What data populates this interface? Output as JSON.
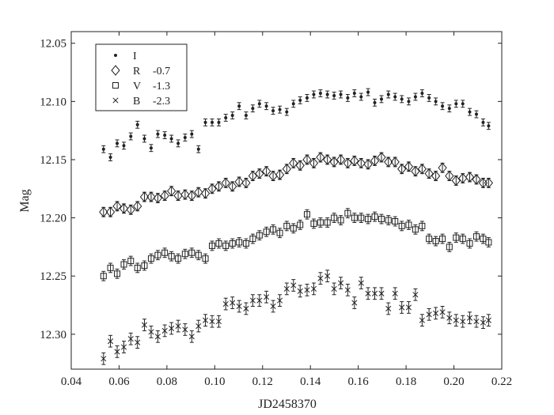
{
  "chart_data": {
    "type": "scatter",
    "xlabel": "JD2458370",
    "ylabel": "Mag",
    "xlim": [
      0.04,
      0.22
    ],
    "ylim": [
      12.33,
      12.04
    ],
    "y_inverted": true,
    "grid": false,
    "legend_position": "top-left",
    "xticks": [
      "0.04",
      "0.06",
      "0.08",
      "0.10",
      "0.12",
      "0.14",
      "0.16",
      "0.18",
      "0.20",
      "0.22"
    ],
    "yticks": [
      "12.05",
      "12.10",
      "12.15",
      "12.20",
      "12.25",
      "12.30"
    ],
    "series": [
      {
        "name": "I",
        "offset_label": "",
        "marker": "dot",
        "error": 0.003,
        "x": [
          0.0535,
          0.0564,
          0.0592,
          0.062,
          0.0649,
          0.0677,
          0.0706,
          0.0734,
          0.0762,
          0.0791,
          0.0819,
          0.0847,
          0.0876,
          0.0904,
          0.0932,
          0.0961,
          0.0989,
          0.1017,
          0.1046,
          0.1074,
          0.1102,
          0.1131,
          0.1159,
          0.1187,
          0.1216,
          0.1244,
          0.1272,
          0.1301,
          0.1329,
          0.1357,
          0.1386,
          0.1414,
          0.1442,
          0.1471,
          0.1499,
          0.1527,
          0.1556,
          0.1584,
          0.1612,
          0.1641,
          0.1669,
          0.1697,
          0.1726,
          0.1754,
          0.1782,
          0.1811,
          0.1839,
          0.1867,
          0.1896,
          0.1924,
          0.1952,
          0.1981,
          0.2009,
          0.2037,
          0.2066,
          0.2094,
          0.2122,
          0.2145
        ],
        "y": [
          12.141,
          12.148,
          12.136,
          12.138,
          12.13,
          12.12,
          12.132,
          12.14,
          12.128,
          12.129,
          12.132,
          12.136,
          12.131,
          12.128,
          12.141,
          12.118,
          12.118,
          12.118,
          12.114,
          12.112,
          12.104,
          12.112,
          12.106,
          12.102,
          12.104,
          12.108,
          12.107,
          12.109,
          12.102,
          12.099,
          12.097,
          12.094,
          12.093,
          12.094,
          12.095,
          12.094,
          12.097,
          12.093,
          12.096,
          12.092,
          12.101,
          12.098,
          12.094,
          12.096,
          12.098,
          12.1,
          12.096,
          12.093,
          12.097,
          12.1,
          12.104,
          12.106,
          12.102,
          12.102,
          12.109,
          12.111,
          12.118,
          12.121
        ]
      },
      {
        "name": "R",
        "offset_label": "-0.7",
        "marker": "diamond",
        "error": 0.004,
        "x": [
          0.0535,
          0.0564,
          0.0592,
          0.062,
          0.0649,
          0.0677,
          0.0706,
          0.0734,
          0.0762,
          0.0791,
          0.0819,
          0.0847,
          0.0876,
          0.0904,
          0.0932,
          0.0961,
          0.0989,
          0.1017,
          0.1046,
          0.1074,
          0.1102,
          0.1131,
          0.1159,
          0.1187,
          0.1216,
          0.1244,
          0.1272,
          0.1301,
          0.1329,
          0.1357,
          0.1386,
          0.1414,
          0.1442,
          0.1471,
          0.1499,
          0.1527,
          0.1556,
          0.1584,
          0.1612,
          0.1641,
          0.1669,
          0.1697,
          0.1726,
          0.1754,
          0.1782,
          0.1811,
          0.1839,
          0.1867,
          0.1896,
          0.1924,
          0.1952,
          0.1981,
          0.2009,
          0.2037,
          0.2066,
          0.2094,
          0.2122,
          0.2145
        ],
        "y": [
          12.195,
          12.195,
          12.19,
          12.192,
          12.193,
          12.19,
          12.182,
          12.182,
          12.183,
          12.181,
          12.177,
          12.181,
          12.18,
          12.181,
          12.178,
          12.179,
          12.175,
          12.173,
          12.17,
          12.173,
          12.169,
          12.17,
          12.164,
          12.162,
          12.16,
          12.164,
          12.163,
          12.158,
          12.153,
          12.155,
          12.15,
          12.153,
          12.148,
          12.15,
          12.152,
          12.15,
          12.153,
          12.151,
          12.153,
          12.154,
          12.151,
          12.148,
          12.152,
          12.152,
          12.158,
          12.156,
          12.16,
          12.158,
          12.162,
          12.164,
          12.157,
          12.164,
          12.168,
          12.166,
          12.165,
          12.167,
          12.17,
          12.17
        ]
      },
      {
        "name": "V",
        "offset_label": "-1.3",
        "marker": "square",
        "error": 0.004,
        "x": [
          0.0535,
          0.0564,
          0.0592,
          0.062,
          0.0649,
          0.0677,
          0.0706,
          0.0734,
          0.0762,
          0.0791,
          0.0819,
          0.0847,
          0.0876,
          0.0904,
          0.0932,
          0.0961,
          0.0989,
          0.1017,
          0.1046,
          0.1074,
          0.1102,
          0.1131,
          0.1159,
          0.1187,
          0.1216,
          0.1244,
          0.1272,
          0.1301,
          0.1329,
          0.1357,
          0.1386,
          0.1414,
          0.1442,
          0.1471,
          0.1499,
          0.1527,
          0.1556,
          0.1584,
          0.1612,
          0.1641,
          0.1669,
          0.1697,
          0.1726,
          0.1754,
          0.1782,
          0.1811,
          0.1839,
          0.1867,
          0.1896,
          0.1924,
          0.1952,
          0.1981,
          0.2009,
          0.2037,
          0.2066,
          0.2094,
          0.2122,
          0.2145
        ],
        "y": [
          12.25,
          12.243,
          12.248,
          12.24,
          12.237,
          12.243,
          12.241,
          12.235,
          12.232,
          12.23,
          12.233,
          12.235,
          12.231,
          12.23,
          12.232,
          12.235,
          12.224,
          12.222,
          12.224,
          12.222,
          12.221,
          12.222,
          12.218,
          12.215,
          12.212,
          12.21,
          12.213,
          12.207,
          12.209,
          12.206,
          12.197,
          12.205,
          12.204,
          12.204,
          12.2,
          12.202,
          12.196,
          12.2,
          12.2,
          12.201,
          12.199,
          12.201,
          12.202,
          12.203,
          12.207,
          12.206,
          12.21,
          12.207,
          12.218,
          12.22,
          12.218,
          12.225,
          12.217,
          12.218,
          12.222,
          12.216,
          12.218,
          12.221
        ]
      },
      {
        "name": "B",
        "offset_label": "-2.3",
        "marker": "cross",
        "error": 0.005,
        "x": [
          0.0535,
          0.0564,
          0.0592,
          0.062,
          0.0649,
          0.0677,
          0.0706,
          0.0734,
          0.0762,
          0.0791,
          0.0819,
          0.0847,
          0.0876,
          0.0904,
          0.0932,
          0.0961,
          0.0989,
          0.1017,
          0.1046,
          0.1074,
          0.1102,
          0.1131,
          0.1159,
          0.1187,
          0.1216,
          0.1244,
          0.1272,
          0.1301,
          0.1329,
          0.1357,
          0.1386,
          0.1414,
          0.1442,
          0.1471,
          0.1499,
          0.1527,
          0.1556,
          0.1584,
          0.1612,
          0.1641,
          0.1669,
          0.1697,
          0.1726,
          0.1754,
          0.1782,
          0.1811,
          0.1839,
          0.1867,
          0.1896,
          0.1924,
          0.1952,
          0.1981,
          0.2009,
          0.2037,
          0.2066,
          0.2094,
          0.2122,
          0.2145
        ],
        "y": [
          12.321,
          12.306,
          12.315,
          12.311,
          12.304,
          12.307,
          12.292,
          12.298,
          12.302,
          12.297,
          12.295,
          12.293,
          12.296,
          12.302,
          12.293,
          12.288,
          12.289,
          12.289,
          12.274,
          12.273,
          12.276,
          12.278,
          12.271,
          12.271,
          12.268,
          12.276,
          12.271,
          12.261,
          12.258,
          12.263,
          12.262,
          12.261,
          12.252,
          12.25,
          12.261,
          12.256,
          12.262,
          12.273,
          12.256,
          12.265,
          12.265,
          12.265,
          12.278,
          12.265,
          12.277,
          12.277,
          12.266,
          12.288,
          12.283,
          12.282,
          12.281,
          12.286,
          12.288,
          12.289,
          12.286,
          12.289,
          12.29,
          12.288
        ]
      }
    ]
  }
}
